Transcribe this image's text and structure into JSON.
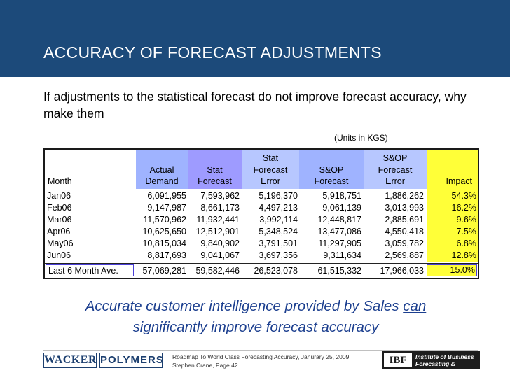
{
  "slide": {
    "title": "ACCURACY OF FORECAST ADJUSTMENTS",
    "subtitle": "If adjustments to the statistical forecast do not improve forecast accuracy, why make them",
    "units_note": "(Units in KGS)"
  },
  "table": {
    "headers": {
      "month": "Month",
      "actual_l1": "Actual",
      "actual_l2": "Demand",
      "stat_l1": "Stat",
      "stat_l2": "Forecast",
      "err_l1": "Stat",
      "err_l2": "Forecast",
      "err_l3": "Error",
      "sop_l1": "S&OP",
      "sop_l2": "Forecast",
      "soperr_l1": "S&OP",
      "soperr_l2": "Forecast",
      "soperr_l3": "Error",
      "impact": "Impact"
    },
    "rows": [
      {
        "month": "Jan06",
        "actual": "6,091,955",
        "stat": "7,593,962",
        "err": "5,196,370",
        "sop": "5,918,751",
        "soperr": "1,886,262",
        "impact": "54.3%"
      },
      {
        "month": "Feb06",
        "actual": "9,147,987",
        "stat": "8,661,173",
        "err": "4,497,213",
        "sop": "9,061,139",
        "soperr": "3,013,993",
        "impact": "16.2%"
      },
      {
        "month": "Mar06",
        "actual": "11,570,962",
        "stat": "11,932,441",
        "err": "3,992,114",
        "sop": "12,448,817",
        "soperr": "2,885,691",
        "impact": "9.6%"
      },
      {
        "month": "Apr06",
        "actual": "10,625,650",
        "stat": "12,512,901",
        "err": "5,348,524",
        "sop": "13,477,086",
        "soperr": "4,550,418",
        "impact": "7.5%"
      },
      {
        "month": "May06",
        "actual": "10,815,034",
        "stat": "9,840,902",
        "err": "3,791,501",
        "sop": "11,297,905",
        "soperr": "3,059,782",
        "impact": "6.8%"
      },
      {
        "month": "Jun06",
        "actual": "8,817,693",
        "stat": "9,041,067",
        "err": "3,697,356",
        "sop": "9,311,634",
        "soperr": "2,569,887",
        "impact": "12.8%"
      }
    ],
    "total": {
      "month": "Last 6 Month Ave.",
      "actual": "57,069,281",
      "stat": "59,582,446",
      "err": "26,523,078",
      "sop": "61,515,332",
      "soperr": "17,966,033",
      "impact": "15.0%"
    }
  },
  "tagline": {
    "part1": "Accurate customer intelligence provided by Sales ",
    "can": "can",
    "part2": "significantly improve forecast accuracy"
  },
  "footer": {
    "logo_left_1": "WACKER",
    "logo_left_2": "POLYMERS",
    "line1": "Roadmap To World Class Forecasting Accuracy, Janurary 25, 2009",
    "line2": "Stephen Crane, Page 42",
    "ibf_mark": "IBF",
    "ibf_line1": "Institute of Business",
    "ibf_line2": "Forecasting & Planning"
  },
  "colors": {
    "header": "#1c4a7a",
    "tagline": "#1c3f8f",
    "impact": "#ffff38"
  }
}
